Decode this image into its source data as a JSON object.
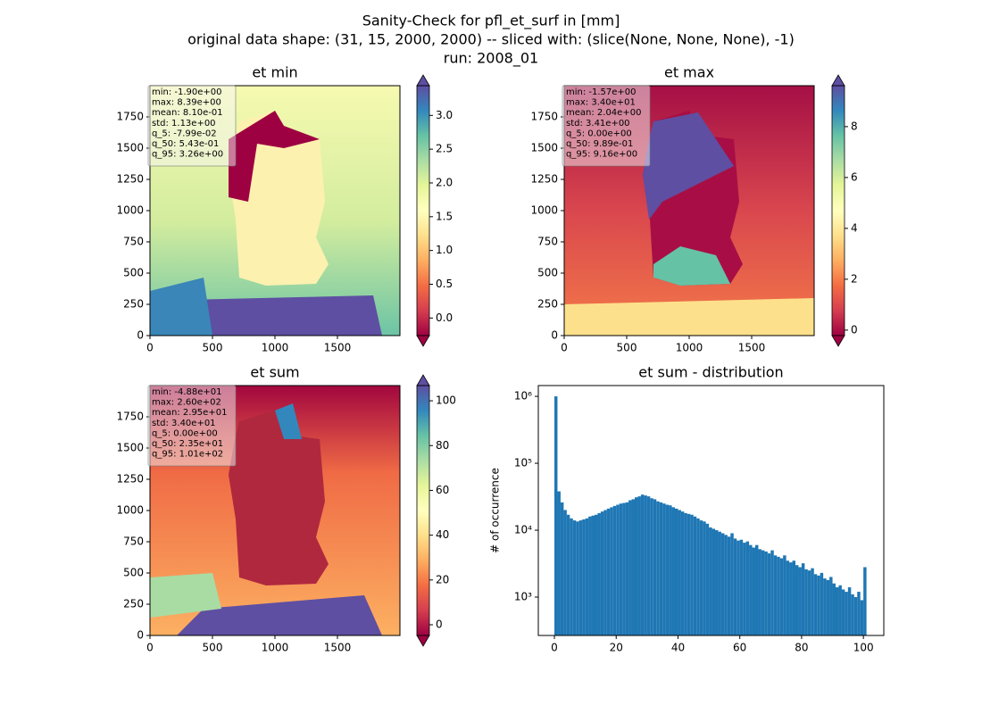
{
  "title_lines": [
    "Sanity-Check for pfl_et_surf in [mm]",
    "original data shape: (31, 15, 2000, 2000) -- sliced with: (slice(None, None, None), -1)",
    "run: 2008_01"
  ],
  "chart_data": [
    {
      "type": "heatmap",
      "title": "et min",
      "xlim": [
        0,
        2000
      ],
      "ylim": [
        0,
        2000
      ],
      "xticks": [
        0,
        500,
        1000,
        1500
      ],
      "yticks": [
        0,
        250,
        500,
        750,
        1000,
        1250,
        1500,
        1750
      ],
      "stats": [
        "min: -1.90e+00",
        "max: 8.39e+00",
        "mean: 8.10e-01",
        "std: 1.13e+00",
        "q_5: -7.99e-02",
        "q_50: 5.43e-01",
        "q_95: 3.26e+00"
      ],
      "colorbar": {
        "colormap": "Spectral",
        "lim": [
          -0.26,
          3.44
        ],
        "extend": "both",
        "ticks": [
          {
            "value": 0,
            "label": "0.0"
          },
          0.5,
          {
            "value": 1,
            "label": "1.0"
          },
          1.5,
          {
            "value": 2,
            "label": "2.0"
          },
          2.5,
          {
            "value": 3,
            "label": "3.0"
          }
        ]
      }
    },
    {
      "type": "heatmap",
      "title": "et max",
      "xlim": [
        0,
        2000
      ],
      "ylim": [
        0,
        2000
      ],
      "xticks": [
        0,
        500,
        1000,
        1500
      ],
      "yticks": [
        0,
        250,
        500,
        750,
        1000,
        1250,
        1500,
        1750
      ],
      "stats": [
        "min: -1.57e+00",
        "max: 3.40e+01",
        "mean: 2.04e+00",
        "std: 3.41e+00",
        "q_5: 0.00e+00",
        "q_50: 9.89e-01",
        "q_95: 9.16e+00"
      ],
      "colorbar": {
        "colormap": "Spectral",
        "lim": [
          -0.215,
          9.61
        ],
        "extend": "both",
        "ticks": [
          0,
          2,
          4,
          6,
          8
        ]
      }
    },
    {
      "type": "heatmap",
      "title": "et sum",
      "xlim": [
        0,
        2000
      ],
      "ylim": [
        0,
        2000
      ],
      "xticks": [
        0,
        500,
        1000,
        1500
      ],
      "yticks": [
        0,
        250,
        500,
        750,
        1000,
        1250,
        1500,
        1750
      ],
      "stats": [
        "min: -4.88e+01",
        "max: 2.60e+02",
        "mean: 2.95e+01",
        "std: 3.40e+01",
        "q_5: 0.00e+00",
        "q_50: 2.35e+01",
        "q_95: 1.01e+02"
      ],
      "colorbar": {
        "colormap": "Spectral",
        "lim": [
          -4.78,
          106.8
        ],
        "extend": "both",
        "ticks": [
          0,
          20,
          40,
          60,
          80,
          100
        ]
      }
    },
    {
      "type": "histogram",
      "title": "et sum - distribution",
      "ylabel": "# of occurrence",
      "color": "#1f77b4",
      "log_y": true,
      "xlim": [
        -5.2,
        106.6
      ],
      "xticks": [
        0,
        20,
        40,
        60,
        80,
        100
      ],
      "ylim": [
        267,
        1450000
      ],
      "yticks": [
        {
          "value": 1000,
          "label": "10³"
        },
        {
          "value": 10000,
          "label": "10⁴"
        },
        {
          "value": 100000,
          "label": "10⁵"
        },
        {
          "value": 1000000,
          "label": "10⁶"
        }
      ],
      "bins": [
        0,
        1,
        2,
        3,
        4,
        5,
        6,
        7,
        8,
        9,
        10,
        11,
        12,
        13,
        14,
        15,
        16,
        17,
        18,
        19,
        20,
        21,
        22,
        23,
        24,
        25,
        26,
        27,
        28,
        29,
        30,
        31,
        32,
        33,
        34,
        35,
        36,
        37,
        38,
        39,
        40,
        41,
        42,
        43,
        44,
        45,
        46,
        47,
        48,
        49,
        50,
        51,
        52,
        53,
        54,
        55,
        56,
        57,
        58,
        59,
        60,
        61,
        62,
        63,
        64,
        65,
        66,
        67,
        68,
        69,
        70,
        71,
        72,
        73,
        74,
        75,
        76,
        77,
        78,
        79,
        80,
        81,
        82,
        83,
        84,
        85,
        86,
        87,
        88,
        89,
        90,
        91,
        92,
        93,
        94,
        95,
        96,
        97,
        98,
        99,
        100,
        101
      ],
      "counts": [
        1000000,
        38000,
        26000,
        20000,
        17000,
        15000,
        14000,
        13500,
        14000,
        14500,
        15000,
        16000,
        16500,
        17000,
        18000,
        19000,
        20000,
        21000,
        22000,
        23000,
        24000,
        25000,
        25500,
        26000,
        28000,
        29000,
        31000,
        32000,
        34000,
        33000,
        32000,
        30000,
        29000,
        27000,
        26000,
        25000,
        24000,
        23500,
        22000,
        21000,
        20000,
        19000,
        18000,
        17500,
        17000,
        16000,
        15000,
        14000,
        13500,
        12500,
        11000,
        10500,
        10000,
        9500,
        9000,
        8500,
        8000,
        9000,
        7500,
        7000,
        7200,
        6500,
        6800,
        6000,
        5500,
        6000,
        5200,
        5000,
        4800,
        4500,
        5000,
        4200,
        4000,
        3800,
        4200,
        3500,
        3300,
        3500,
        3000,
        2800,
        3200,
        2600,
        2500,
        2700,
        2200,
        2100,
        2300,
        1900,
        1800,
        2000,
        1600,
        1400,
        1500,
        1300,
        1200,
        1400,
        1100,
        1000,
        1200,
        900,
        2800
      ]
    }
  ]
}
